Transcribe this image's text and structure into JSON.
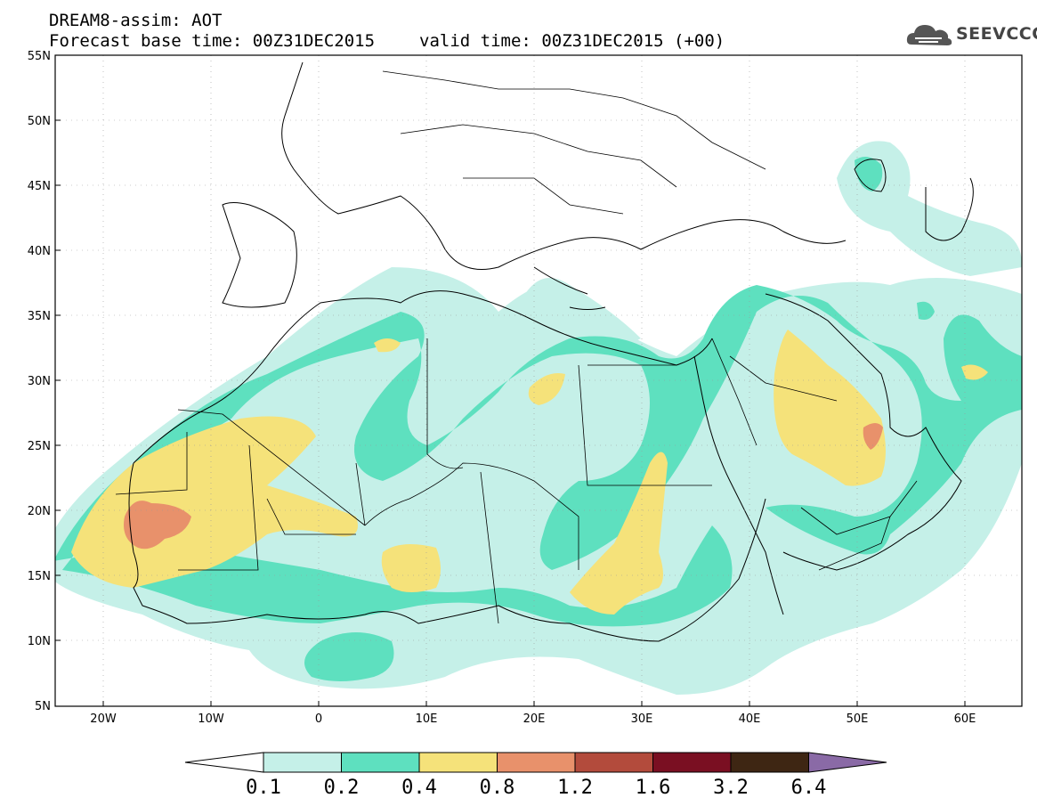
{
  "title_line1": "DREAM8-assim: AOT",
  "forecast_base": "Forecast base time: 00Z31DEC2015",
  "valid_time": "valid time: 00Z31DEC2015 (+00)",
  "logo_text": "SEEVCCC",
  "lat_labels": [
    "55N",
    "50N",
    "45N",
    "40N",
    "35N",
    "30N",
    "25N",
    "20N",
    "15N",
    "10N",
    "5N"
  ],
  "lon_labels": [
    "20W",
    "10W",
    "0",
    "10E",
    "20E",
    "30E",
    "40E",
    "50E",
    "60E"
  ],
  "colorbar": {
    "labels": [
      "0.1",
      "0.2",
      "0.4",
      "0.8",
      "1.2",
      "1.6",
      "3.2",
      "6.4"
    ],
    "colors": [
      "#ffffff",
      "#c5f0e8",
      "#5ee0bf",
      "#f5e27a",
      "#e8916b",
      "#b34b3c",
      "#7a0f22",
      "#3e2613",
      "#8a6aa6"
    ]
  }
}
